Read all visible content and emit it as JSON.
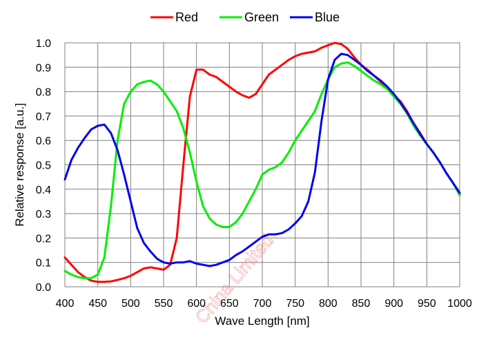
{
  "chart_data": {
    "type": "line",
    "xlabel": "Wave Length [nm]",
    "ylabel": "Relative response [a.u.]",
    "xlim": [
      400,
      1000
    ],
    "ylim": [
      0.0,
      1.0
    ],
    "xticks": [
      "400",
      "450",
      "500",
      "550",
      "600",
      "650",
      "700",
      "750",
      "800",
      "850",
      "900",
      "950",
      "1000"
    ],
    "yticks": [
      "0.0",
      "0.1",
      "0.2",
      "0.3",
      "0.4",
      "0.5",
      "0.6",
      "0.7",
      "0.8",
      "0.9",
      "1.0"
    ],
    "grid": true,
    "legend_position": "top-center",
    "watermark": "China Limited",
    "series": [
      {
        "name": "Red",
        "color": "#ff0000",
        "x": [
          400,
          410,
          420,
          430,
          440,
          450,
          460,
          470,
          480,
          490,
          500,
          510,
          520,
          530,
          540,
          550,
          560,
          570,
          580,
          590,
          600,
          610,
          620,
          630,
          640,
          650,
          660,
          670,
          680,
          690,
          700,
          710,
          720,
          730,
          740,
          750,
          760,
          770,
          780,
          790,
          800,
          810,
          820,
          830,
          840,
          850,
          860,
          870,
          880,
          890,
          900,
          910,
          920,
          930,
          940,
          950,
          960,
          970,
          980,
          990,
          1000
        ],
        "values": [
          0.12,
          0.09,
          0.06,
          0.04,
          0.025,
          0.02,
          0.02,
          0.022,
          0.028,
          0.035,
          0.045,
          0.06,
          0.075,
          0.08,
          0.075,
          0.07,
          0.09,
          0.2,
          0.5,
          0.78,
          0.89,
          0.89,
          0.87,
          0.86,
          0.84,
          0.82,
          0.8,
          0.785,
          0.775,
          0.79,
          0.83,
          0.87,
          0.89,
          0.91,
          0.93,
          0.945,
          0.955,
          0.96,
          0.965,
          0.98,
          0.99,
          1.0,
          0.995,
          0.975,
          0.94,
          0.91,
          0.89,
          0.865,
          0.84,
          0.815,
          0.785,
          0.76,
          0.72,
          0.67,
          0.63,
          0.585,
          0.55,
          0.51,
          0.465,
          0.425,
          0.38
        ]
      },
      {
        "name": "Green",
        "color": "#00ee00",
        "x": [
          400,
          410,
          420,
          430,
          440,
          450,
          460,
          470,
          480,
          490,
          500,
          510,
          520,
          530,
          540,
          550,
          560,
          570,
          580,
          590,
          600,
          610,
          620,
          630,
          640,
          650,
          660,
          670,
          680,
          690,
          700,
          710,
          720,
          730,
          740,
          750,
          760,
          770,
          780,
          790,
          800,
          810,
          820,
          830,
          840,
          850,
          860,
          870,
          880,
          890,
          900,
          910,
          920,
          930,
          940,
          950,
          960,
          970,
          980,
          990,
          1000
        ],
        "values": [
          0.065,
          0.05,
          0.04,
          0.035,
          0.035,
          0.05,
          0.12,
          0.33,
          0.6,
          0.75,
          0.8,
          0.83,
          0.84,
          0.845,
          0.83,
          0.8,
          0.76,
          0.72,
          0.65,
          0.55,
          0.43,
          0.33,
          0.28,
          0.255,
          0.245,
          0.245,
          0.265,
          0.3,
          0.35,
          0.4,
          0.46,
          0.48,
          0.49,
          0.51,
          0.55,
          0.6,
          0.64,
          0.68,
          0.72,
          0.79,
          0.85,
          0.9,
          0.915,
          0.92,
          0.905,
          0.885,
          0.865,
          0.845,
          0.83,
          0.81,
          0.78,
          0.75,
          0.71,
          0.66,
          0.62,
          0.585,
          0.55,
          0.51,
          0.465,
          0.425,
          0.375
        ]
      },
      {
        "name": "Blue",
        "color": "#0000ee",
        "x": [
          400,
          410,
          420,
          430,
          440,
          450,
          460,
          470,
          480,
          490,
          500,
          510,
          520,
          530,
          540,
          550,
          560,
          570,
          580,
          590,
          600,
          610,
          620,
          630,
          640,
          650,
          660,
          670,
          680,
          690,
          700,
          710,
          720,
          730,
          740,
          750,
          760,
          770,
          780,
          790,
          800,
          810,
          820,
          830,
          840,
          850,
          860,
          870,
          880,
          890,
          900,
          910,
          920,
          930,
          940,
          950,
          960,
          970,
          980,
          990,
          1000
        ],
        "values": [
          0.44,
          0.52,
          0.57,
          0.61,
          0.645,
          0.66,
          0.665,
          0.63,
          0.56,
          0.46,
          0.35,
          0.24,
          0.18,
          0.145,
          0.115,
          0.1,
          0.095,
          0.1,
          0.1,
          0.105,
          0.095,
          0.09,
          0.085,
          0.09,
          0.1,
          0.11,
          0.13,
          0.145,
          0.165,
          0.185,
          0.205,
          0.215,
          0.215,
          0.22,
          0.235,
          0.26,
          0.29,
          0.35,
          0.47,
          0.68,
          0.85,
          0.93,
          0.955,
          0.95,
          0.93,
          0.91,
          0.885,
          0.865,
          0.845,
          0.82,
          0.79,
          0.755,
          0.715,
          0.67,
          0.625,
          0.585,
          0.55,
          0.51,
          0.465,
          0.425,
          0.385
        ]
      }
    ]
  }
}
